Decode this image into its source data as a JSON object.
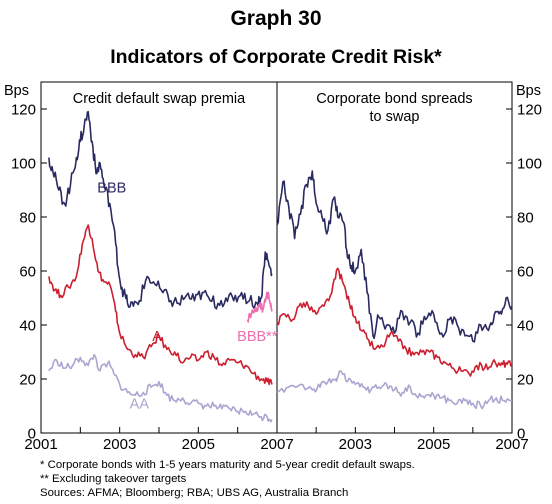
{
  "header": {
    "graph_number": "Graph 30",
    "title": "Indicators of Corporate Credit Risk*"
  },
  "footnotes": [
    "*  Corporate bonds with 1-5 years maturity and 5-year credit default swaps.",
    "** Excluding takeover targets",
    "Sources: AFMA; Bloomberg; RBA; UBS AG, Australia Branch"
  ],
  "colors": {
    "BBB": "#2a2a62",
    "A": "#cc1f2f",
    "BBB**": "#ee6fb0",
    "AA": "#a9a6d0",
    "axis": "#000000"
  },
  "chart_data": [
    {
      "type": "line",
      "title": "Credit default swap premia",
      "ylabel": "Bps",
      "ylim": [
        0,
        130
      ],
      "yticks": [
        0,
        20,
        40,
        60,
        80,
        100,
        120
      ],
      "xlim": [
        2001.0,
        2007.0
      ],
      "xtick_labels": [
        "2001",
        "2003",
        "2005",
        "2007"
      ],
      "series": [
        {
          "name": "BBB",
          "color_key": "BBB",
          "x": [
            2001.2,
            2001.3,
            2001.45,
            2001.6,
            2001.75,
            2001.9,
            2002.0,
            2002.1,
            2002.2,
            2002.3,
            2002.4,
            2002.5,
            2002.6,
            2002.75,
            2002.9,
            2003.0,
            2003.1,
            2003.2,
            2003.35,
            2003.5,
            2003.7,
            2003.9,
            2004.1,
            2004.3,
            2004.5,
            2004.7,
            2004.9,
            2005.1,
            2005.3,
            2005.5,
            2005.7,
            2005.9,
            2006.1,
            2006.3,
            2006.5,
            2006.6,
            2006.7,
            2006.8,
            2006.87
          ],
          "y": [
            102,
            97,
            90,
            85,
            92,
            102,
            108,
            114,
            119,
            108,
            96,
            100,
            92,
            85,
            70,
            57,
            52,
            48,
            47,
            49,
            58,
            55,
            52,
            49,
            48,
            51,
            49,
            52,
            49,
            48,
            50,
            49,
            52,
            49,
            48,
            50,
            67,
            62,
            59
          ]
        },
        {
          "name": "A",
          "color_key": "A",
          "x": [
            2001.2,
            2001.35,
            2001.5,
            2001.7,
            2001.9,
            2002.05,
            2002.2,
            2002.3,
            2002.45,
            2002.6,
            2002.75,
            2002.9,
            2003.0,
            2003.2,
            2003.4,
            2003.6,
            2003.8,
            2004.0,
            2004.2,
            2004.4,
            2004.6,
            2004.8,
            2005.0,
            2005.2,
            2005.4,
            2005.6,
            2005.8,
            2006.0,
            2006.2,
            2006.4,
            2006.6,
            2006.75,
            2006.87
          ],
          "y": [
            58,
            53,
            51,
            54,
            58,
            70,
            77,
            72,
            60,
            56,
            55,
            45,
            37,
            31,
            29,
            28,
            32,
            36,
            31,
            30,
            26,
            28,
            27,
            30,
            28,
            25,
            27,
            26,
            25,
            22,
            20,
            19,
            18
          ]
        },
        {
          "name": "BBB**",
          "color_key": "BBB**",
          "x": [
            2006.25,
            2006.35,
            2006.45,
            2006.55,
            2006.65,
            2006.72,
            2006.78,
            2006.83,
            2006.87
          ],
          "y": [
            42,
            44,
            45,
            47,
            46,
            50,
            52,
            48,
            45
          ]
        },
        {
          "name": "AA",
          "color_key": "AA",
          "x": [
            2001.2,
            2001.4,
            2001.6,
            2001.8,
            2002.0,
            2002.2,
            2002.35,
            2002.5,
            2002.7,
            2002.85,
            2003.0,
            2003.2,
            2003.4,
            2003.6,
            2003.8,
            2004.0,
            2004.2,
            2004.4,
            2004.6,
            2004.8,
            2005.0,
            2005.2,
            2005.4,
            2005.6,
            2005.8,
            2006.0,
            2006.2,
            2006.4,
            2006.6,
            2006.75,
            2006.87
          ],
          "y": [
            23,
            27,
            24,
            25,
            28,
            25,
            29,
            23,
            26,
            22,
            18,
            15,
            14,
            15,
            17,
            19,
            14,
            12,
            13,
            11,
            11,
            10,
            10,
            9,
            9,
            8,
            8,
            7,
            6,
            6,
            5
          ]
        }
      ],
      "annotations": [
        {
          "text": "BBB",
          "x": 2002.8,
          "y": 89,
          "color_key": "BBB"
        },
        {
          "text": "A",
          "x": 2003.95,
          "y": 34,
          "color_key": "A"
        },
        {
          "text": "BBB**",
          "x": 2006.5,
          "y": 34,
          "color_key": "BBB**"
        },
        {
          "text": "AA",
          "x": 2003.5,
          "y": 9,
          "color_key": "AA"
        }
      ]
    },
    {
      "type": "line",
      "title": "Corporate bond spreads to swap",
      "title_lines": [
        "Corporate bond spreads",
        "to swap"
      ],
      "ylabel": "Bps",
      "ylim": [
        0,
        130
      ],
      "yticks": [
        0,
        20,
        40,
        60,
        80,
        100,
        120
      ],
      "xlim": [
        2001.0,
        2007.0
      ],
      "xtick_labels": [
        "2003",
        "2005",
        "2007"
      ],
      "series": [
        {
          "name": "BBB",
          "color_key": "BBB",
          "x": [
            2001.0,
            2001.15,
            2001.3,
            2001.45,
            2001.6,
            2001.75,
            2001.9,
            2002.0,
            2002.15,
            2002.3,
            2002.45,
            2002.55,
            2002.7,
            2002.8,
            2002.9,
            2003.0,
            2003.15,
            2003.3,
            2003.45,
            2003.6,
            2003.8,
            2004.0,
            2004.2,
            2004.4,
            2004.6,
            2004.8,
            2005.0,
            2005.2,
            2005.4,
            2005.6,
            2005.8,
            2006.0,
            2006.2,
            2006.4,
            2006.55,
            2006.7,
            2006.85,
            2007.0
          ],
          "y": [
            77,
            93,
            84,
            72,
            81,
            92,
            97,
            85,
            80,
            75,
            87,
            80,
            78,
            65,
            62,
            60,
            68,
            52,
            36,
            43,
            40,
            37,
            45,
            41,
            37,
            42,
            44,
            37,
            42,
            40,
            36,
            34,
            40,
            38,
            44,
            45,
            50,
            47
          ]
        },
        {
          "name": "A",
          "color_key": "A",
          "x": [
            2001.0,
            2001.2,
            2001.4,
            2001.6,
            2001.8,
            2002.0,
            2002.2,
            2002.4,
            2002.55,
            2002.7,
            2002.85,
            2003.0,
            2003.15,
            2003.3,
            2003.5,
            2003.7,
            2003.9,
            2004.1,
            2004.3,
            2004.5,
            2004.7,
            2004.9,
            2005.1,
            2005.3,
            2005.5,
            2005.7,
            2005.9,
            2006.1,
            2006.3,
            2006.5,
            2006.7,
            2006.85,
            2007.0
          ],
          "y": [
            41,
            44,
            42,
            48,
            47,
            44,
            47,
            52,
            61,
            55,
            48,
            43,
            38,
            35,
            31,
            32,
            37,
            34,
            31,
            29,
            30,
            30,
            28,
            26,
            24,
            23,
            22,
            25,
            24,
            26,
            25,
            26,
            25
          ]
        },
        {
          "name": "AA",
          "color_key": "AA",
          "x": [
            2001.0,
            2001.3,
            2001.6,
            2001.9,
            2002.1,
            2002.3,
            2002.5,
            2002.6,
            2002.8,
            2003.0,
            2003.2,
            2003.4,
            2003.6,
            2003.8,
            2004.0,
            2004.2,
            2004.4,
            2004.6,
            2004.8,
            2005.0,
            2005.2,
            2005.4,
            2005.6,
            2005.8,
            2006.0,
            2006.2,
            2006.4,
            2006.6,
            2006.8,
            2007.0
          ],
          "y": [
            15,
            17,
            18,
            16,
            17,
            19,
            20,
            23,
            19,
            18,
            17,
            16,
            17,
            18,
            16,
            15,
            17,
            13,
            14,
            14,
            13,
            12,
            11,
            12,
            11,
            10,
            12,
            13,
            12,
            12
          ]
        }
      ]
    }
  ]
}
